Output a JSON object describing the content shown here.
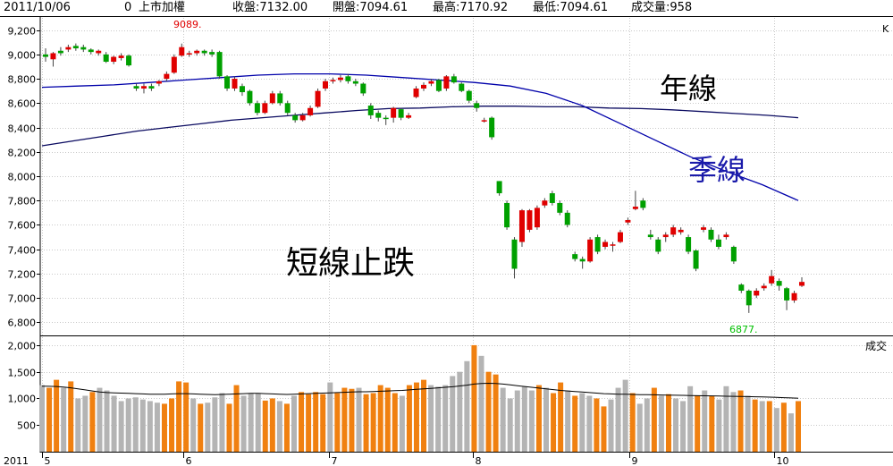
{
  "header": {
    "date": "2011/10/06",
    "index_code": "0",
    "index_name": "上市加權",
    "close": "收盤:7132.00",
    "open": "開盤:7094.61",
    "high": "最高:7170.92",
    "low": "最低:7094.61",
    "volume": "成交量:958"
  },
  "chart_data": [
    {
      "type": "candlestick",
      "panel": "price",
      "corner_label": "K",
      "yticks": [
        "9,200",
        "9,000",
        "8,800",
        "8,600",
        "8,400",
        "8,200",
        "8,000",
        "7,800",
        "7,600",
        "7,400",
        "7,200",
        "7,000",
        "6,800"
      ],
      "ylim": [
        6700,
        9300
      ],
      "annotations": {
        "high_mark": "9089.",
        "low_mark": "6877.",
        "year_line": "年線",
        "season_line": "季線",
        "short_term": "短線止跌"
      },
      "candles": [
        [
          9000,
          8980,
          9050,
          8940
        ],
        [
          8960,
          9010,
          9020,
          8900
        ],
        [
          9030,
          9010,
          9060,
          8990
        ],
        [
          9040,
          9060,
          9080,
          9020
        ],
        [
          9070,
          9050,
          9090,
          9030
        ],
        [
          9060,
          9040,
          9080,
          9020
        ],
        [
          9040,
          9020,
          9050,
          9000
        ],
        [
          9010,
          9030,
          9040,
          8990
        ],
        [
          9000,
          8940,
          9020,
          8930
        ],
        [
          8940,
          8980,
          8990,
          8920
        ],
        [
          8970,
          8990,
          9010,
          8950
        ],
        [
          8990,
          8910,
          9000,
          8900
        ],
        [
          8740,
          8720,
          8760,
          8700
        ],
        [
          8720,
          8740,
          8760,
          8680
        ],
        [
          8740,
          8720,
          8760,
          8700
        ],
        [
          8760,
          8780,
          8790,
          8740
        ],
        [
          8800,
          8840,
          8860,
          8780
        ],
        [
          8850,
          8980,
          9000,
          8840
        ],
        [
          8990,
          9060,
          9089,
          8980
        ],
        [
          9000,
          9010,
          9030,
          8980
        ],
        [
          9010,
          9030,
          9040,
          8990
        ],
        [
          9030,
          9010,
          9040,
          8990
        ],
        [
          9020,
          9000,
          9040,
          8980
        ],
        [
          9020,
          8820,
          9030,
          8800
        ],
        [
          8820,
          8720,
          8830,
          8700
        ],
        [
          8720,
          8800,
          8820,
          8700
        ],
        [
          8740,
          8690,
          8760,
          8660
        ],
        [
          8700,
          8600,
          8710,
          8580
        ],
        [
          8600,
          8520,
          8620,
          8500
        ],
        [
          8520,
          8600,
          8620,
          8510
        ],
        [
          8600,
          8680,
          8700,
          8590
        ],
        [
          8680,
          8600,
          8700,
          8580
        ],
        [
          8600,
          8520,
          8620,
          8500
        ],
        [
          8500,
          8460,
          8520,
          8440
        ],
        [
          8460,
          8500,
          8520,
          8450
        ],
        [
          8500,
          8560,
          8580,
          8490
        ],
        [
          8570,
          8700,
          8720,
          8560
        ],
        [
          8720,
          8780,
          8800,
          8700
        ],
        [
          8780,
          8790,
          8810,
          8760
        ],
        [
          8790,
          8810,
          8830,
          8770
        ],
        [
          8820,
          8780,
          8840,
          8760
        ],
        [
          8780,
          8760,
          8800,
          8740
        ],
        [
          8760,
          8680,
          8770,
          8660
        ],
        [
          8580,
          8500,
          8600,
          8470
        ],
        [
          8520,
          8480,
          8540,
          8450
        ],
        [
          8480,
          8470,
          8500,
          8420
        ],
        [
          8480,
          8560,
          8570,
          8440
        ],
        [
          8550,
          8480,
          8560,
          8460
        ],
        [
          8480,
          8500,
          8520,
          8470
        ],
        [
          8650,
          8720,
          8740,
          8640
        ],
        [
          8720,
          8750,
          8770,
          8700
        ],
        [
          8760,
          8780,
          8800,
          8740
        ],
        [
          8790,
          8700,
          8800,
          8690
        ],
        [
          8720,
          8820,
          8830,
          8700
        ],
        [
          8820,
          8770,
          8840,
          8760
        ],
        [
          8760,
          8700,
          8770,
          8690
        ],
        [
          8700,
          8620,
          8710,
          8600
        ],
        [
          8600,
          8560,
          8620,
          8530
        ],
        [
          8450,
          8460,
          8480,
          8440
        ],
        [
          8480,
          8320,
          8490,
          8300
        ],
        [
          7960,
          7860,
          7960,
          7840
        ],
        [
          7780,
          7580,
          7800,
          7560
        ],
        [
          7480,
          7240,
          7500,
          7160
        ],
        [
          7460,
          7720,
          7730,
          7420
        ],
        [
          7560,
          7720,
          7730,
          7540
        ],
        [
          7580,
          7740,
          7760,
          7560
        ],
        [
          7760,
          7800,
          7820,
          7740
        ],
        [
          7860,
          7780,
          7880,
          7760
        ],
        [
          7780,
          7700,
          7800,
          7680
        ],
        [
          7700,
          7600,
          7720,
          7580
        ],
        [
          7360,
          7320,
          7380,
          7300
        ],
        [
          7320,
          7300,
          7340,
          7240
        ],
        [
          7300,
          7480,
          7500,
          7290
        ],
        [
          7500,
          7380,
          7520,
          7360
        ],
        [
          7420,
          7460,
          7480,
          7400
        ],
        [
          7440,
          7440,
          7460,
          7380
        ],
        [
          7460,
          7540,
          7560,
          7450
        ],
        [
          7620,
          7640,
          7660,
          7600
        ],
        [
          7730,
          7750,
          7880,
          7720
        ],
        [
          7800,
          7740,
          7820,
          7720
        ],
        [
          7520,
          7500,
          7560,
          7480
        ],
        [
          7480,
          7380,
          7500,
          7360
        ],
        [
          7500,
          7520,
          7540,
          7460
        ],
        [
          7520,
          7580,
          7600,
          7500
        ],
        [
          7540,
          7560,
          7580,
          7520
        ],
        [
          7500,
          7380,
          7520,
          7360
        ],
        [
          7390,
          7240,
          7400,
          7220
        ],
        [
          7560,
          7580,
          7600,
          7540
        ],
        [
          7560,
          7480,
          7580,
          7460
        ],
        [
          7480,
          7420,
          7520,
          7400
        ],
        [
          7500,
          7520,
          7540,
          7480
        ],
        [
          7420,
          7300,
          7430,
          7280
        ],
        [
          7110,
          7060,
          7120,
          7040
        ],
        [
          7060,
          6940,
          7070,
          6877
        ],
        [
          7020,
          7060,
          7080,
          7000
        ],
        [
          7080,
          7100,
          7120,
          7060
        ],
        [
          7120,
          7180,
          7230,
          7100
        ],
        [
          7140,
          7100,
          7160,
          7060
        ],
        [
          7080,
          6980,
          7090,
          6900
        ],
        [
          6980,
          7040,
          7060,
          6960
        ],
        [
          7100,
          7132,
          7170,
          7090
        ]
      ]
    },
    {
      "type": "line",
      "panel": "price",
      "series": [
        {
          "name": "年線",
          "color": "#0a0a60",
          "values": [
            8250,
            8290,
            8330,
            8370,
            8400,
            8430,
            8460,
            8480,
            8500,
            8520,
            8540,
            8555,
            8560,
            8570,
            8575,
            8575,
            8570,
            8570,
            8560,
            8555,
            8545,
            8530,
            8515,
            8500,
            8480
          ]
        },
        {
          "name": "季線",
          "color": "#0000aa",
          "values": [
            8730,
            8740,
            8750,
            8770,
            8790,
            8810,
            8830,
            8840,
            8840,
            8830,
            8810,
            8790,
            8770,
            8740,
            8680,
            8580,
            8440,
            8300,
            8160,
            8040,
            7930,
            7800
          ]
        }
      ]
    },
    {
      "type": "bar",
      "panel": "volume",
      "corner_label": "成交",
      "yticks": [
        "2,000",
        "1,500",
        "1,000",
        "500"
      ],
      "ylim": [
        0,
        2150
      ],
      "x_labels": [
        "2011",
        "5",
        "6",
        "7",
        "8",
        "9",
        "10"
      ],
      "colors": {
        "up": "#f08010",
        "down": "#b4b4b4"
      },
      "values": [
        1250,
        1200,
        1350,
        1200,
        1320,
        1000,
        1050,
        1120,
        1200,
        1150,
        1050,
        950,
        1000,
        1020,
        980,
        950,
        920,
        900,
        1000,
        1320,
        1300,
        1000,
        900,
        920,
        1020,
        1100,
        900,
        1250,
        1050,
        1100,
        1100,
        960,
        1000,
        950,
        900,
        1050,
        1120,
        1080,
        1120,
        1080,
        1300,
        1100,
        1200,
        1180,
        1200,
        1080,
        1100,
        1250,
        1200,
        1100,
        1050,
        1250,
        1300,
        1350,
        1250,
        1220,
        1250,
        1420,
        1500,
        1700,
        2000,
        1800,
        1500,
        1450,
        1200,
        1000,
        1150,
        1220,
        1150,
        1250,
        1200,
        1100,
        1300,
        1150,
        1050,
        1100,
        1050,
        1000,
        850,
        980,
        1200,
        1350,
        1100,
        900,
        1000,
        1200,
        1050,
        1080,
        1000,
        950,
        1230,
        1050,
        1150,
        1050,
        980,
        1230,
        1120,
        1150,
        1050,
        980,
        950,
        950,
        820,
        920,
        720,
        950
      ],
      "up": [
        0,
        1,
        1,
        0,
        1,
        0,
        0,
        1,
        0,
        0,
        0,
        0,
        0,
        0,
        0,
        0,
        0,
        1,
        1,
        1,
        1,
        0,
        1,
        0,
        0,
        0,
        1,
        1,
        0,
        0,
        0,
        1,
        1,
        0,
        1,
        0,
        1,
        1,
        1,
        1,
        0,
        1,
        1,
        1,
        0,
        1,
        1,
        1,
        1,
        1,
        0,
        1,
        1,
        1,
        0,
        0,
        0,
        0,
        0,
        0,
        1,
        0,
        1,
        1,
        0,
        0,
        0,
        0,
        0,
        1,
        0,
        1,
        1,
        0,
        1,
        0,
        0,
        1,
        1,
        0,
        0,
        0,
        1,
        0,
        0,
        1,
        0,
        1,
        0,
        0,
        0,
        1,
        0,
        1,
        0,
        0,
        0,
        1,
        0,
        1,
        0,
        1,
        0,
        1,
        0,
        1
      ],
      "avg_line": {
        "color": "#000000",
        "values": [
          1230,
          1228,
          1225,
          1215,
          1200,
          1180,
          1160,
          1140,
          1120,
          1110,
          1105,
          1100,
          1095,
          1090,
          1085,
          1080,
          1078,
          1080,
          1085,
          1090,
          1090,
          1085,
          1080,
          1075,
          1070,
          1075,
          1080,
          1085,
          1090,
          1095,
          1095,
          1090,
          1085,
          1080,
          1075,
          1080,
          1085,
          1090,
          1095,
          1100,
          1105,
          1110,
          1115,
          1120,
          1125,
          1125,
          1130,
          1135,
          1140,
          1145,
          1150,
          1160,
          1170,
          1180,
          1190,
          1200,
          1210,
          1220,
          1235,
          1250,
          1270,
          1280,
          1285,
          1280,
          1270,
          1255,
          1240,
          1225,
          1210,
          1195,
          1180,
          1165,
          1150,
          1140,
          1130,
          1120,
          1110,
          1100,
          1090,
          1085,
          1080,
          1078,
          1075,
          1072,
          1070,
          1068,
          1065,
          1062,
          1060,
          1058,
          1055,
          1052,
          1050,
          1048,
          1045,
          1042,
          1040,
          1038,
          1035,
          1032,
          1030,
          1025,
          1020,
          1015,
          1010,
          1005
        ]
      }
    }
  ]
}
